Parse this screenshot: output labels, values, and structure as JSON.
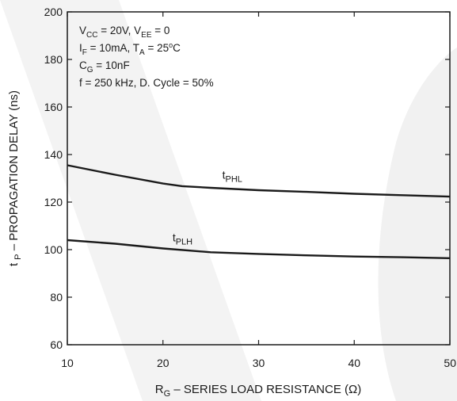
{
  "chart_data": {
    "type": "line",
    "xlabel": {
      "main": "R",
      "sub": "G",
      "rest": " – SERIES LOAD RESISTANCE (Ω)"
    },
    "ylabel": {
      "pre": "t",
      "sub": "P",
      "rest": " – PROPAGATION DELAY (ns)"
    },
    "xlim": [
      10,
      50
    ],
    "ylim": [
      60,
      200
    ],
    "xticks": [
      10,
      20,
      30,
      40,
      50
    ],
    "yticks": [
      60,
      80,
      100,
      120,
      140,
      160,
      180,
      200
    ],
    "grid": false,
    "series": [
      {
        "name": "tPHL",
        "label": {
          "main": "t",
          "sub": "PHL"
        },
        "x": [
          10,
          15,
          20,
          22,
          25,
          30,
          35,
          40,
          45,
          50
        ],
        "y": [
          135.5,
          131.5,
          127.8,
          126.7,
          126.0,
          125.0,
          124.3,
          123.5,
          122.9,
          122.3
        ]
      },
      {
        "name": "tPLH",
        "label": {
          "main": "t",
          "sub": "PLH"
        },
        "x": [
          10,
          15,
          20,
          25,
          30,
          35,
          40,
          45,
          50
        ],
        "y": [
          104.0,
          102.5,
          100.5,
          98.9,
          98.2,
          97.6,
          97.1,
          96.8,
          96.4
        ]
      }
    ],
    "annotations": [
      {
        "parts": [
          [
            "V",
            ""
          ],
          [
            "CC",
            "sub"
          ],
          [
            " = 20V, V",
            ""
          ],
          [
            "EE",
            "sub"
          ],
          [
            " = 0",
            ""
          ]
        ]
      },
      {
        "parts": [
          [
            "I",
            ""
          ],
          [
            "F",
            "sub"
          ],
          [
            " = 10mA, T",
            ""
          ],
          [
            "A",
            "sub"
          ],
          [
            " = 25",
            ""
          ],
          [
            "o",
            "sup"
          ],
          [
            "C",
            ""
          ]
        ]
      },
      {
        "parts": [
          [
            "C",
            ""
          ],
          [
            "G",
            "sub"
          ],
          [
            " = 10nF",
            ""
          ]
        ]
      },
      {
        "parts": [
          [
            "f = 250 kHz, D. Cycle = 50%",
            ""
          ]
        ]
      }
    ]
  }
}
